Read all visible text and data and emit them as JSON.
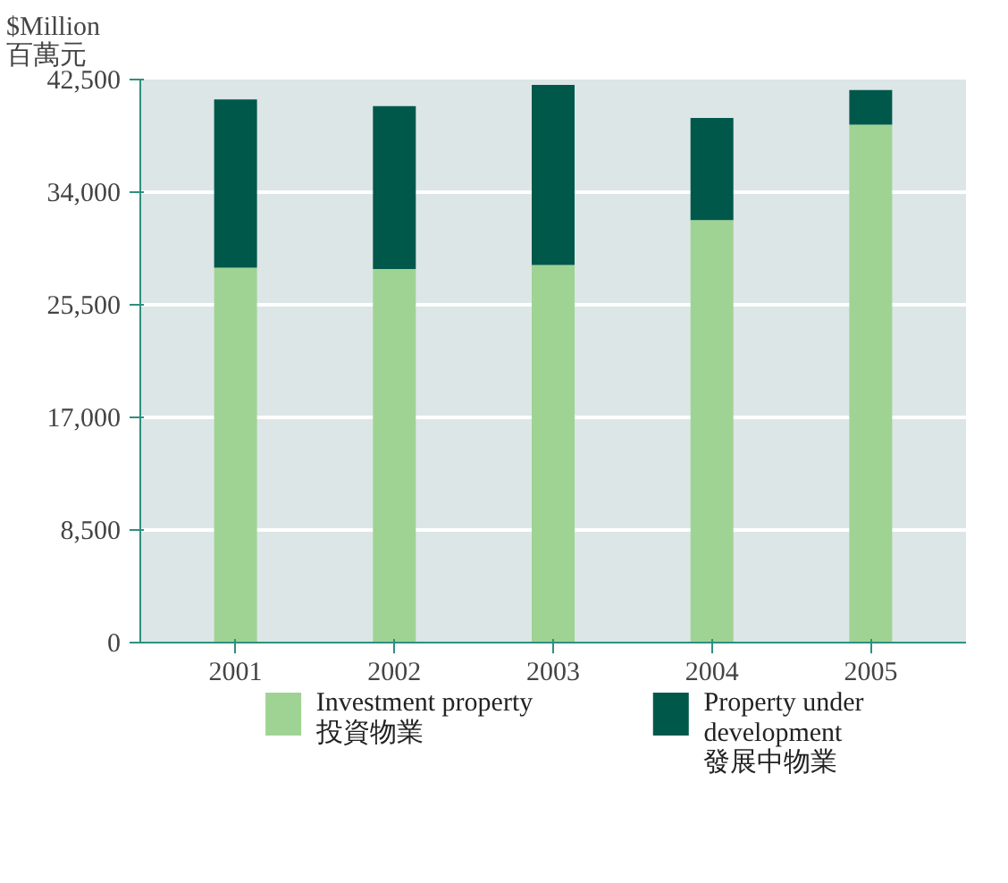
{
  "chart_data": {
    "type": "bar",
    "stacked": true,
    "ylabel": "$Million\n百萬元",
    "categories": [
      "2001",
      "2002",
      "2003",
      "2004",
      "2005"
    ],
    "series": [
      {
        "name": "Investment property\n投資物業",
        "color": "#9fd393",
        "values": [
          28300,
          28200,
          28500,
          31900,
          39100
        ]
      },
      {
        "name": "Property under\ndevelopment\n發展中物業",
        "color": "#00584a",
        "values": [
          12700,
          12300,
          13600,
          7700,
          2600
        ]
      }
    ],
    "ylim": [
      0,
      42500
    ],
    "yticks": [
      0,
      {
        "value": 8500,
        "label": "8,500"
      },
      {
        "value": 17000,
        "label": "17,000"
      },
      {
        "value": 25500,
        "label": "25,500"
      },
      {
        "value": 34000,
        "label": "34,000"
      },
      {
        "value": 42500,
        "label": "42,500"
      }
    ],
    "grid": "y",
    "legend": "bottom"
  }
}
